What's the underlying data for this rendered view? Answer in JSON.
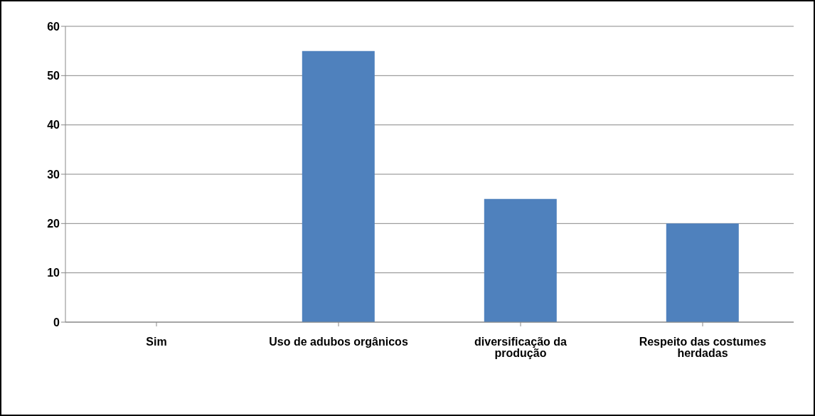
{
  "chart_data": {
    "type": "bar",
    "categories": [
      "Sim",
      "Uso de adubos orgânicos",
      "diversificação da produção",
      "Respeito das costumes herdadas"
    ],
    "values": [
      0,
      55,
      25,
      20
    ],
    "color": "#4f81bd",
    "ylim": [
      0,
      60
    ],
    "yticks": [
      0,
      10,
      20,
      30,
      40,
      50,
      60
    ],
    "grid": "y",
    "legend": false
  }
}
